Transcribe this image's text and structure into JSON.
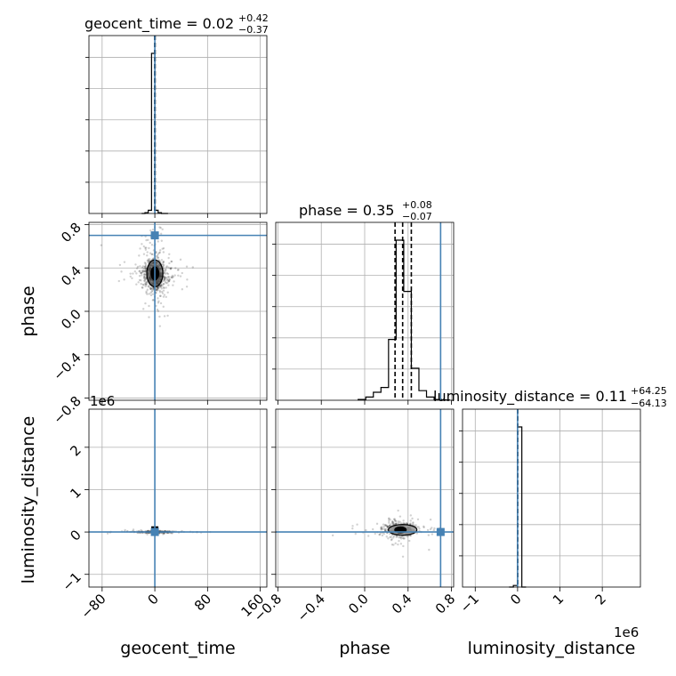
{
  "chart_data": {
    "type": "corner",
    "parameters": [
      {
        "key": "geocent_time",
        "label": "geocent_time",
        "title_lhs": "geocent_time = 0.02",
        "title_plus": "+0.42",
        "title_minus": "−0.37",
        "truth": 0
      },
      {
        "key": "phase",
        "label": "phase",
        "title_lhs": "phase = 0.35",
        "title_plus": "+0.08",
        "title_minus": "−0.07",
        "truth": 0.7
      },
      {
        "key": "luminosity_distance",
        "label": "luminosity_distance",
        "title_lhs": "luminosity_distance = 0.11",
        "title_plus": "+64.25",
        "title_minus": "−64.13",
        "truth": 0,
        "offset_label": "1e6"
      }
    ],
    "ranges": {
      "geocent_time": [
        -100,
        170
      ],
      "phase": [
        -0.82,
        0.82
      ],
      "luminosity_distance": [
        -1.3,
        2.9
      ]
    },
    "ticks": {
      "geocent_time": {
        "values": [
          -80,
          0,
          80,
          160
        ],
        "labels": [
          "−80",
          "0",
          "80",
          "160"
        ]
      },
      "phase": {
        "values": [
          -0.8,
          -0.4,
          0.0,
          0.4,
          0.8
        ],
        "labels": [
          "−0.8",
          "−0.4",
          "0.0",
          "0.4",
          "0.8"
        ]
      },
      "luminosity_distance": {
        "values": [
          -1,
          0,
          1,
          2
        ],
        "labels": [
          "−1",
          "0",
          "1",
          "2"
        ]
      }
    },
    "hist_geocent_time": {
      "edges": [
        -20,
        -15,
        -10,
        -5,
        0,
        5,
        10,
        15,
        20
      ],
      "counts": [
        0,
        0.005,
        0.02,
        1.0,
        0.02,
        0.005,
        0,
        0
      ],
      "quantiles": [
        -0.35,
        0.02,
        0.44
      ]
    },
    "hist_phase": {
      "edges": [
        -0.06,
        0.01,
        0.08,
        0.15,
        0.22,
        0.29,
        0.36,
        0.43,
        0.5,
        0.57,
        0.64,
        0.71,
        0.78
      ],
      "counts": [
        0.005,
        0.02,
        0.05,
        0.08,
        0.38,
        1.0,
        0.68,
        0.2,
        0.06,
        0.02,
        0.005,
        0.002
      ],
      "quantiles": [
        0.28,
        0.35,
        0.43
      ]
    },
    "hist_luminosity_distance": {
      "edges": [
        -0.2,
        -0.1,
        0.0,
        0.1,
        0.2
      ],
      "counts": [
        0,
        0.01,
        1.0,
        0
      ],
      "quantiles": [
        -6e-05,
        1e-07,
        6.4e-05
      ]
    },
    "truth_color": "#4682b4",
    "grid": true
  }
}
